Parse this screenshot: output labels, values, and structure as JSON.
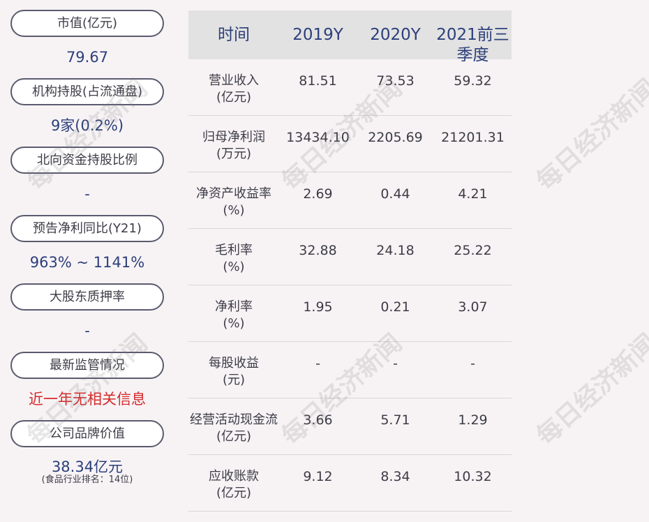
{
  "left_panel": {
    "items": [
      {
        "label": "市值(亿元)",
        "value": "79.67"
      },
      {
        "label": "机构持股(占流通盘)",
        "value": "9家(0.2%)"
      },
      {
        "label": "北向资金持股比例",
        "value": "-"
      },
      {
        "label": "预告净利同比(Y21)",
        "value": "963% ~ 1141%"
      },
      {
        "label": "大股东质押率",
        "value": "-"
      },
      {
        "label": "最新监管情况",
        "value": "近一年无相关信息"
      },
      {
        "label": "公司品牌价值",
        "value": "38.34亿元",
        "note": "(食品行业排名：14位)"
      }
    ],
    "accent_color": "#2c3f7a",
    "alert_color": "#d62a2a"
  },
  "table": {
    "headers": [
      "时间",
      "2019Y",
      "2020Y",
      "2021前三季度"
    ],
    "rows": [
      {
        "label": "营业收入\n(亿元)",
        "values": [
          "81.51",
          "73.53",
          "59.32"
        ]
      },
      {
        "label": "归母净利润\n(万元)",
        "values": [
          "13434.10",
          "2205.69",
          "21201.31"
        ]
      },
      {
        "label": "净资产收益率\n(%)",
        "values": [
          "2.69",
          "0.44",
          "4.21"
        ]
      },
      {
        "label": "毛利率\n(%)",
        "values": [
          "32.88",
          "24.18",
          "25.22"
        ]
      },
      {
        "label": "净利率\n(%)",
        "values": [
          "1.95",
          "0.21",
          "3.07"
        ]
      },
      {
        "label": "每股收益\n(元)",
        "values": [
          "-",
          "-",
          "-"
        ]
      },
      {
        "label": "经营活动现金流\n(亿元)",
        "values": [
          "3.66",
          "5.71",
          "1.29"
        ]
      },
      {
        "label": "应收账款\n(亿元)",
        "values": [
          "9.12",
          "8.34",
          "10.32"
        ]
      }
    ]
  },
  "watermark": "每日经济新闻"
}
